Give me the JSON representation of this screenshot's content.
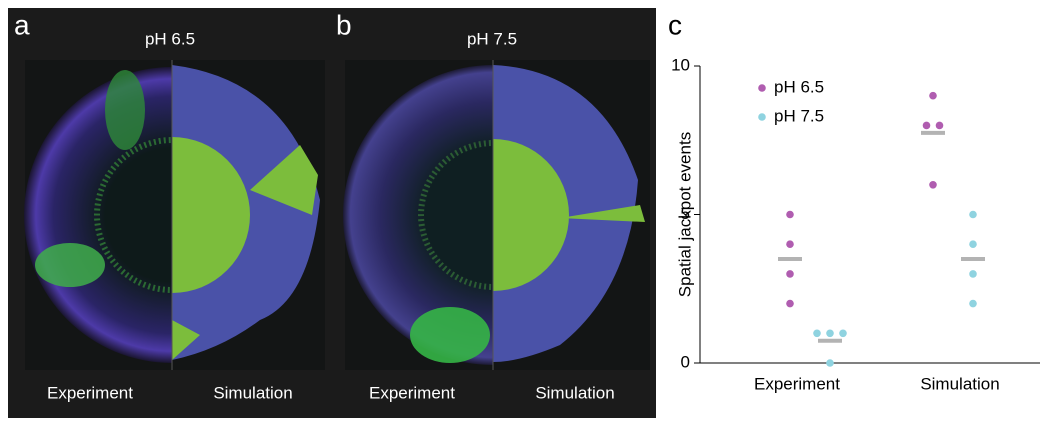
{
  "panels": [
    {
      "label": "a",
      "title": "pH 6.5",
      "left_label": "Experiment",
      "right_label": "Simulation"
    },
    {
      "label": "b",
      "title": "pH 7.5",
      "left_label": "Experiment",
      "right_label": "Simulation"
    }
  ],
  "chart_data": {
    "type": "strip",
    "panel_label": "c",
    "y_label": "Spatial jackpot events",
    "categories": [
      "Experiment",
      "Simulation"
    ],
    "series": [
      {
        "name": "pH 6.5",
        "color": "#b05db0",
        "values": [
          [
            5,
            4,
            3,
            2
          ],
          [
            9,
            8,
            8,
            6
          ]
        ],
        "means": [
          3.5,
          7.75
        ]
      },
      {
        "name": "pH 7.5",
        "color": "#8fd3e0",
        "values": [
          [
            1,
            1,
            1,
            0
          ],
          [
            5,
            4,
            3,
            2
          ]
        ],
        "means": [
          0.75,
          3.5
        ]
      }
    ],
    "mean_color": "#b3b3b3",
    "ylim": [
      0,
      10
    ],
    "yticks": [
      0,
      5,
      10
    ],
    "legend": "upper-left"
  }
}
